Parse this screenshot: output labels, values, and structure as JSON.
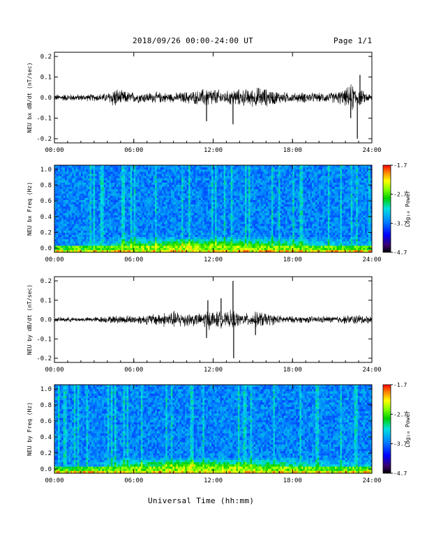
{
  "header": {
    "title": "2018/09/26  00:00-24:00 UT",
    "page": "Page 1/1"
  },
  "footer": {
    "xlabel": "Universal Time (hh:mm)"
  },
  "chart_data": [
    {
      "type": "line",
      "ylabel": "NEU bx dB/dt (nT/sec)",
      "xlim": [
        0,
        24
      ],
      "ylim": [
        -0.2,
        0.2
      ],
      "xticks": [
        "00:00",
        "06:00",
        "12:00",
        "18:00",
        "24:00"
      ],
      "yticks": [
        "0.2",
        "0.1",
        "0.0",
        "-0.1",
        "-0.2"
      ],
      "envelope": {
        "hours": [
          0,
          1,
          2,
          3,
          4,
          4.5,
          5,
          6,
          7,
          8,
          9,
          10,
          11,
          11.5,
          12,
          13,
          13.5,
          14,
          15,
          15.5,
          16,
          17,
          18,
          19,
          20,
          21,
          22,
          22.5,
          23,
          23.5,
          24
        ],
        "amplitude": [
          0.018,
          0.02,
          0.018,
          0.02,
          0.025,
          0.06,
          0.04,
          0.03,
          0.03,
          0.03,
          0.025,
          0.035,
          0.04,
          0.06,
          0.05,
          0.035,
          0.05,
          0.045,
          0.05,
          0.06,
          0.05,
          0.035,
          0.025,
          0.03,
          0.025,
          0.03,
          0.045,
          0.08,
          0.05,
          0.03,
          0.02
        ]
      },
      "spikes": [
        {
          "hour": 11.5,
          "value": -0.115
        },
        {
          "hour": 13.5,
          "value": -0.13
        },
        {
          "hour": 22.4,
          "value": -0.1
        },
        {
          "hour": 22.9,
          "value": -0.2
        },
        {
          "hour": 23.1,
          "value": 0.11
        }
      ]
    },
    {
      "type": "heatmap",
      "ylabel": "NEU bx Freq (Hz)",
      "xlim": [
        0,
        24
      ],
      "ylim": [
        0.0,
        1.0
      ],
      "xticks": [
        "00:00",
        "06:00",
        "12:00",
        "18:00",
        "24:00"
      ],
      "yticks": [
        "1.0",
        "0.8",
        "0.6",
        "0.4",
        "0.2",
        "0.0"
      ],
      "colorbar": {
        "label": "Log₁₀ Power",
        "ticks": [
          "-1.7",
          "-2.7",
          "-3.7",
          "-4.7"
        ],
        "range": [
          -4.7,
          -1.7
        ]
      }
    },
    {
      "type": "line",
      "ylabel": "NEU by dB/dt (nT/sec)",
      "xlim": [
        0,
        24
      ],
      "ylim": [
        -0.2,
        0.2
      ],
      "xticks": [
        "00:00",
        "06:00",
        "12:00",
        "18:00",
        "24:00"
      ],
      "yticks": [
        "0.2",
        "0.1",
        "0.0",
        "-0.1",
        "-0.2"
      ],
      "envelope": {
        "hours": [
          0,
          1,
          2,
          3,
          4,
          5,
          6,
          7,
          8,
          9,
          10,
          11,
          11.5,
          12,
          12.5,
          13,
          13.5,
          14,
          15,
          15.5,
          16,
          17,
          18,
          19,
          20,
          21,
          22,
          23,
          24
        ],
        "amplitude": [
          0.012,
          0.015,
          0.012,
          0.015,
          0.02,
          0.025,
          0.025,
          0.03,
          0.04,
          0.05,
          0.045,
          0.035,
          0.06,
          0.05,
          0.05,
          0.04,
          0.06,
          0.035,
          0.04,
          0.05,
          0.04,
          0.025,
          0.02,
          0.02,
          0.02,
          0.02,
          0.025,
          0.03,
          0.02
        ]
      },
      "spikes": [
        {
          "hour": 11.5,
          "value": -0.095
        },
        {
          "hour": 11.6,
          "value": 0.1
        },
        {
          "hour": 12.6,
          "value": 0.11
        },
        {
          "hour": 13.5,
          "value": 0.2
        },
        {
          "hour": 13.55,
          "value": -0.2
        },
        {
          "hour": 15.2,
          "value": -0.08
        }
      ]
    },
    {
      "type": "heatmap",
      "ylabel": "NEU by Freq (Hz)",
      "xlim": [
        0,
        24
      ],
      "ylim": [
        0.0,
        1.0
      ],
      "xticks": [
        "00:00",
        "06:00",
        "12:00",
        "18:00",
        "24:00"
      ],
      "yticks": [
        "1.0",
        "0.8",
        "0.6",
        "0.4",
        "0.2",
        "0.0"
      ],
      "colorbar": {
        "label": "Log₁₀ Power",
        "ticks": [
          "-1.7",
          "-2.7",
          "-3.7",
          "-4.7"
        ],
        "range": [
          -4.7,
          -1.7
        ]
      }
    }
  ]
}
